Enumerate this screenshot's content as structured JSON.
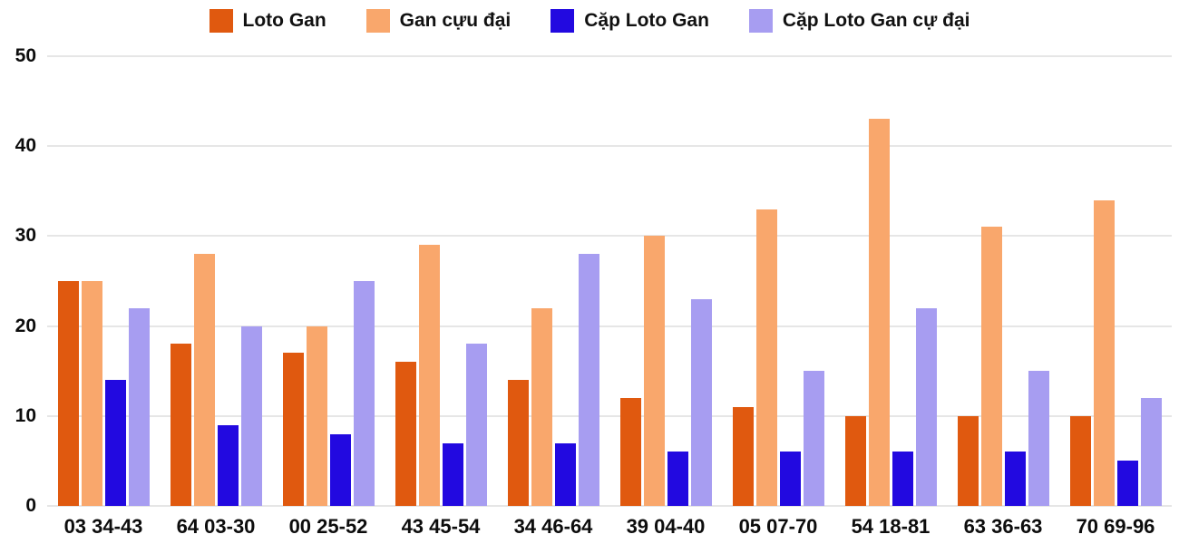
{
  "chart_data": {
    "type": "bar",
    "title": "",
    "xlabel": "",
    "ylabel": "",
    "ylim": [
      0,
      50
    ],
    "yticks": [
      0,
      10,
      20,
      30,
      40,
      50
    ],
    "grid": true,
    "legend_position": "top",
    "categories": [
      "03 34-43",
      "64 03-30",
      "00 25-52",
      "43 45-54",
      "34 46-64",
      "39 04-40",
      "05 07-70",
      "54 18-81",
      "63 36-63",
      "70 69-96"
    ],
    "series": [
      {
        "key": "loto-gan",
        "name": "Loto Gan",
        "color": "#e0590f",
        "values": [
          25,
          18,
          17,
          16,
          14,
          12,
          11,
          10,
          10,
          10
        ]
      },
      {
        "key": "gan-cuu-dai",
        "name": "Gan cựu đại",
        "color": "#f9a76c",
        "values": [
          25,
          28,
          20,
          29,
          22,
          30,
          33,
          43,
          31,
          34
        ]
      },
      {
        "key": "cap-loto-gan",
        "name": "Cặp Loto Gan",
        "color": "#2209e0",
        "values": [
          14,
          9,
          8,
          7,
          7,
          6,
          6,
          6,
          6,
          5
        ]
      },
      {
        "key": "cap-loto-gan-cu-dai",
        "name": "Cặp Loto Gan cự đại",
        "color": "#a79df1",
        "values": [
          22,
          20,
          25,
          18,
          28,
          23,
          15,
          22,
          15,
          12
        ]
      }
    ],
    "colors": {
      "background": "#ffffff",
      "gridline": "#e6e6e6",
      "axis_text": "#0d0d0d"
    }
  }
}
